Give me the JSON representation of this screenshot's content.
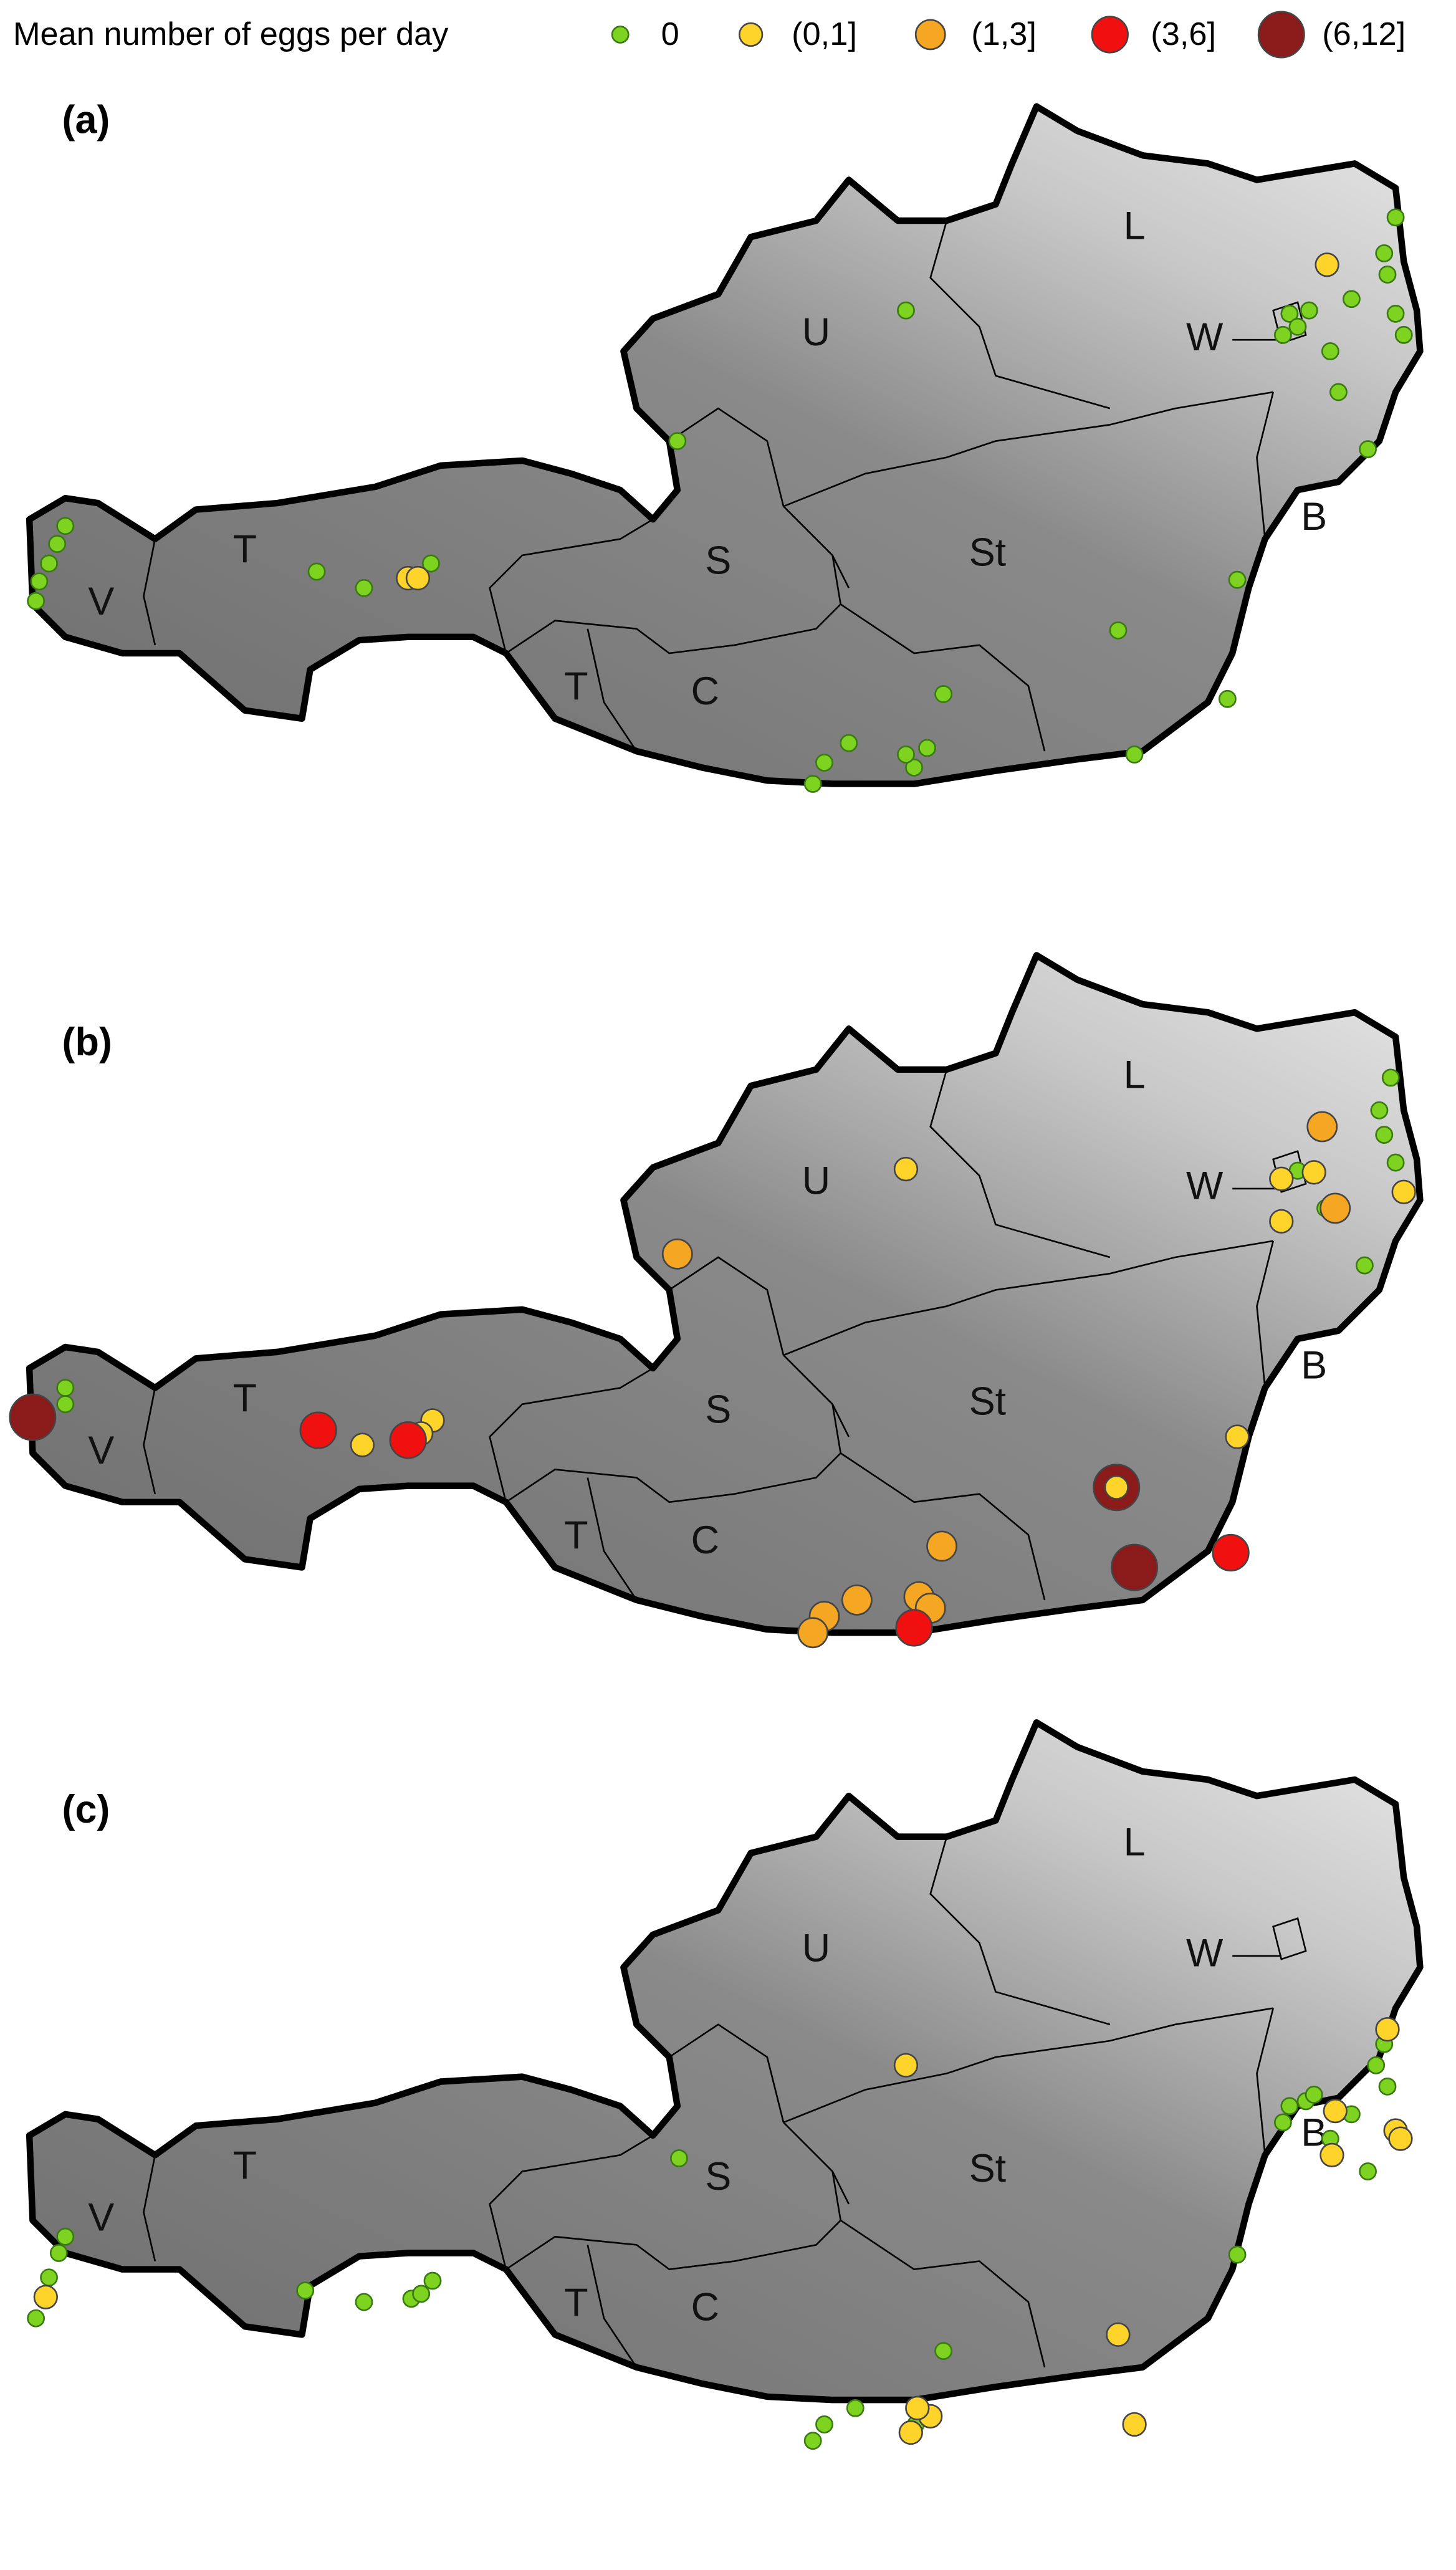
{
  "legend": {
    "title": "Mean number of eggs per day",
    "items": [
      {
        "label": "0",
        "color": "#7ed321"
      },
      {
        "label": "(0,1]",
        "color": "#ffd42a"
      },
      {
        "label": "(1,3]",
        "color": "#f5a623"
      },
      {
        "label": "(3,6]",
        "color": "#f01010"
      },
      {
        "label": "(6,12]",
        "color": "#8b1a1a"
      }
    ]
  },
  "regions": [
    "V",
    "T",
    "S",
    "St",
    "U",
    "L",
    "W",
    "B",
    "T",
    "C"
  ],
  "panels": [
    {
      "label": "(a)"
    },
    {
      "label": "(b)"
    },
    {
      "label": "(c)"
    }
  ]
}
